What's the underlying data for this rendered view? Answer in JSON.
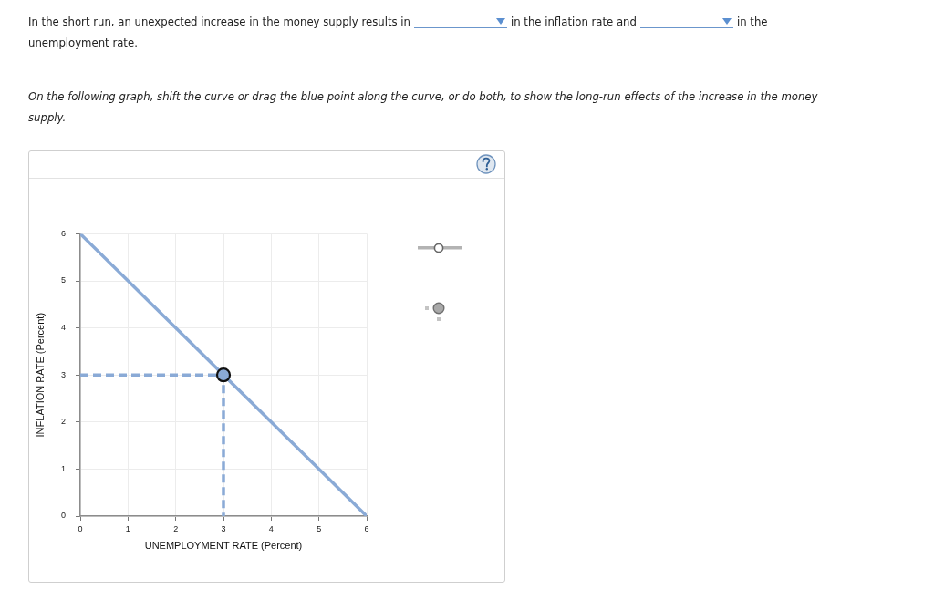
{
  "chart_data": {
    "type": "line",
    "annotations": [
      "In the short run, an unexpected increase in the money supply results in",
      "in the inflation rate and",
      "in the",
      "unemployment rate.",
      "On the following graph, shift the curve or drag the blue point along the curve, or do both, to show the long-run effects of the increase in the money supply."
    ],
    "xlabel": "UNEMPLOYMENT RATE (Percent)",
    "ylabel": "INFLATION RATE (Percent)",
    "xlim": [
      0,
      6
    ],
    "ylim": [
      0,
      6
    ],
    "xticks": [
      0,
      1,
      2,
      3,
      4,
      5,
      6
    ],
    "yticks": [
      0,
      1,
      2,
      3,
      4,
      5,
      6
    ],
    "grid": true,
    "series": [
      {
        "type": "line",
        "color": "#8aaad6",
        "x": [
          0,
          6
        ],
        "values": [
          6,
          0
        ],
        "marker": "none"
      },
      {
        "type": "line",
        "color": "#8aaad6",
        "x": [
          0,
          3,
          3
        ],
        "values": [
          3,
          3,
          0
        ],
        "marker": "none",
        "line_style": "dashed"
      },
      {
        "type": "scatter",
        "color": "#8aaad6",
        "x": [
          3
        ],
        "values": [
          3
        ],
        "marker": "circle"
      }
    ]
  }
}
